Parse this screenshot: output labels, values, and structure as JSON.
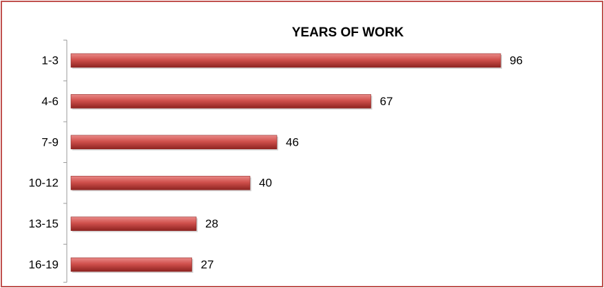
{
  "chart_data": {
    "type": "bar",
    "orientation": "horizontal",
    "title": "YEARS OF WORK",
    "categories": [
      "1-3",
      "4-6",
      "7-9",
      "10-12",
      "13-15",
      "16-19"
    ],
    "values": [
      96,
      67,
      46,
      40,
      28,
      27
    ],
    "color": "#c0504d",
    "xlim": [
      0,
      100
    ],
    "grid": false
  }
}
